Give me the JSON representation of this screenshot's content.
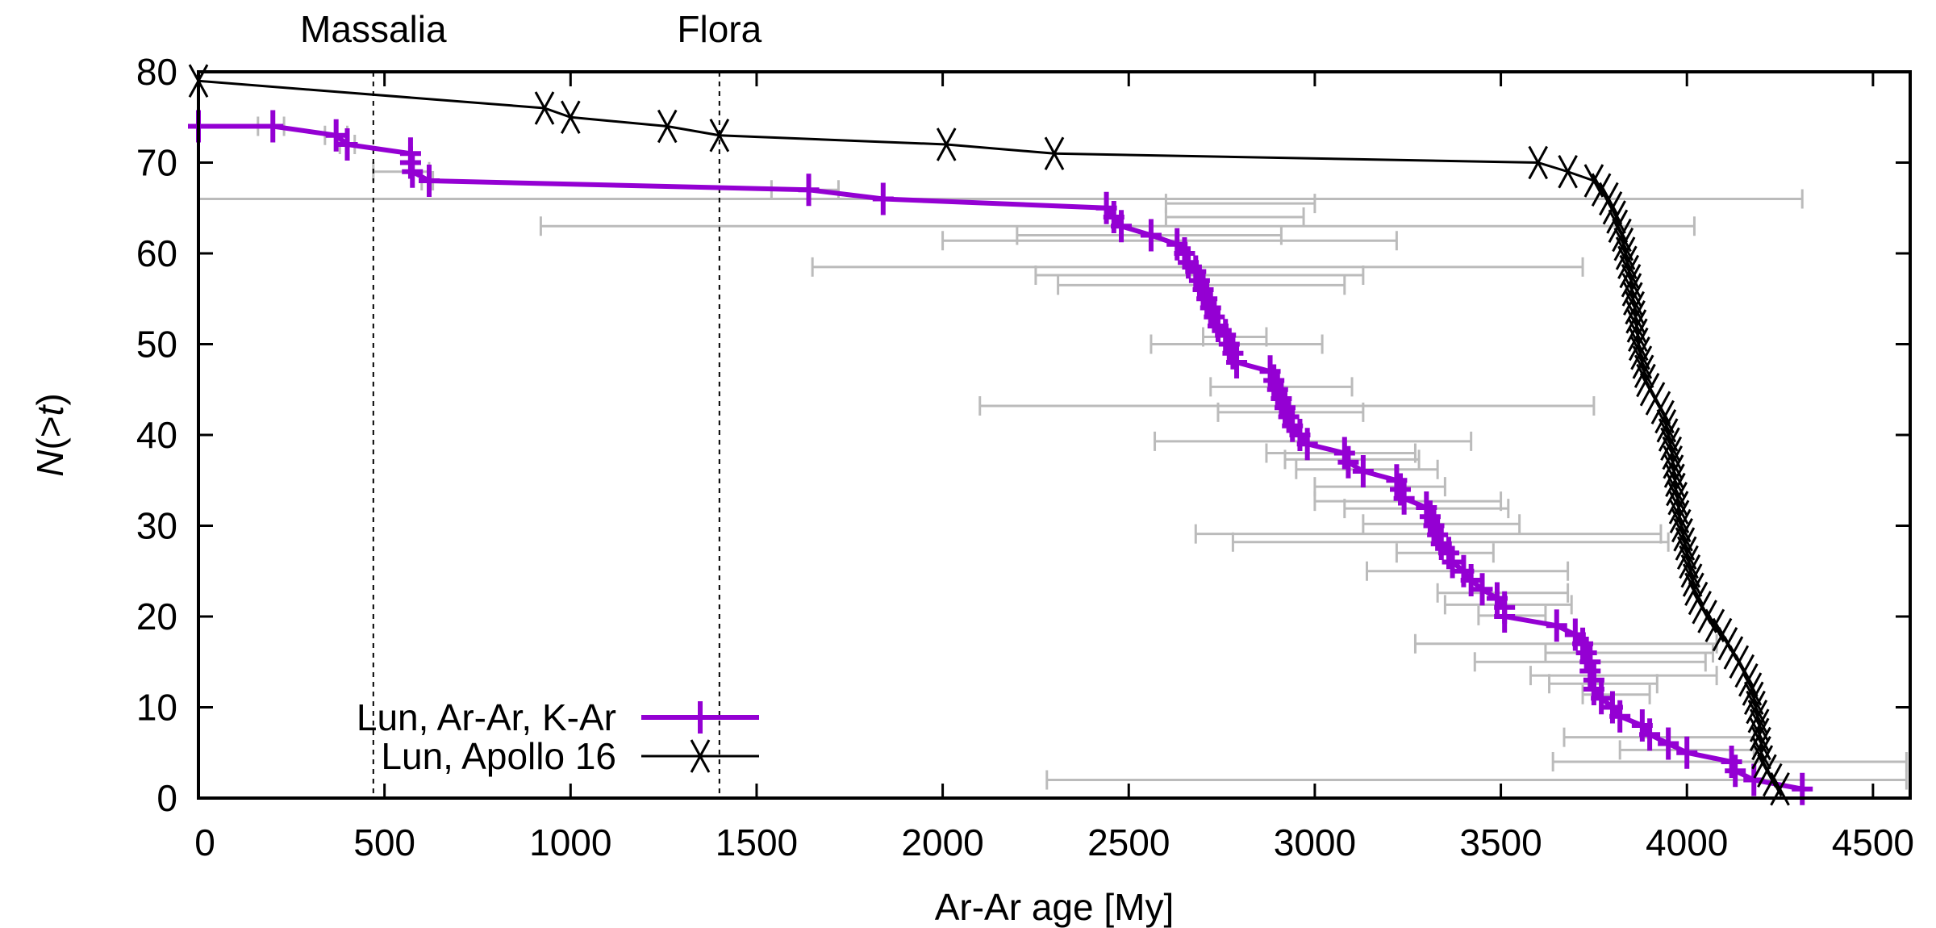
{
  "chart_data": {
    "type": "line",
    "xlabel": "Ar-Ar age [My]",
    "ylabel": "N(>t)",
    "xlim": [
      0,
      4600
    ],
    "ylim": [
      0,
      80
    ],
    "xticks": [
      0,
      500,
      1000,
      1500,
      2000,
      2500,
      3000,
      3500,
      4000,
      4500
    ],
    "yticks": [
      0,
      10,
      20,
      30,
      40,
      50,
      60,
      70,
      80
    ],
    "grid": false,
    "legend_position": "bottom-left",
    "annotations": [
      {
        "label": "Massalia",
        "x": 470
      },
      {
        "label": "Flora",
        "x": 1400
      }
    ],
    "colors": {
      "lun_arar": "#9400d3",
      "apollo16": "#000000",
      "errorbars": "#bbbbbb"
    },
    "series": [
      {
        "name": "Lun, Ar-Ar, K-Ar",
        "marker": "plus",
        "points": [
          [
            0,
            74
          ],
          [
            200,
            74
          ],
          [
            370,
            73
          ],
          [
            400,
            72
          ],
          [
            570,
            71
          ],
          [
            570,
            70
          ],
          [
            575,
            69
          ],
          [
            620,
            68
          ],
          [
            1640,
            67
          ],
          [
            1840,
            66
          ],
          [
            2440,
            65
          ],
          [
            2460,
            64
          ],
          [
            2480,
            63
          ],
          [
            2560,
            62
          ],
          [
            2630,
            61
          ],
          [
            2650,
            60
          ],
          [
            2660,
            59
          ],
          [
            2680,
            58
          ],
          [
            2690,
            57
          ],
          [
            2700,
            56
          ],
          [
            2710,
            55
          ],
          [
            2720,
            54
          ],
          [
            2730,
            53
          ],
          [
            2740,
            52
          ],
          [
            2760,
            51
          ],
          [
            2770,
            50
          ],
          [
            2780,
            49
          ],
          [
            2790,
            48
          ],
          [
            2880,
            47
          ],
          [
            2890,
            46
          ],
          [
            2900,
            45
          ],
          [
            2910,
            44
          ],
          [
            2920,
            43
          ],
          [
            2930,
            42
          ],
          [
            2940,
            41
          ],
          [
            2960,
            40
          ],
          [
            2980,
            39
          ],
          [
            3080,
            38
          ],
          [
            3090,
            37
          ],
          [
            3130,
            36
          ],
          [
            3220,
            35
          ],
          [
            3230,
            34
          ],
          [
            3240,
            33
          ],
          [
            3300,
            32
          ],
          [
            3310,
            31
          ],
          [
            3320,
            30
          ],
          [
            3330,
            29
          ],
          [
            3340,
            28
          ],
          [
            3360,
            27
          ],
          [
            3370,
            26
          ],
          [
            3400,
            25
          ],
          [
            3420,
            24
          ],
          [
            3450,
            23
          ],
          [
            3490,
            22
          ],
          [
            3510,
            21
          ],
          [
            3510,
            20
          ],
          [
            3650,
            19
          ],
          [
            3700,
            18
          ],
          [
            3720,
            17
          ],
          [
            3730,
            16
          ],
          [
            3740,
            15
          ],
          [
            3740,
            14
          ],
          [
            3750,
            13
          ],
          [
            3750,
            12
          ],
          [
            3770,
            11
          ],
          [
            3800,
            10
          ],
          [
            3820,
            9
          ],
          [
            3880,
            8
          ],
          [
            3900,
            7
          ],
          [
            3950,
            6
          ],
          [
            4000,
            5
          ],
          [
            4120,
            4
          ],
          [
            4130,
            3
          ],
          [
            4180,
            2
          ],
          [
            4310,
            1
          ]
        ],
        "xerrorbars": [
          [
            74,
            160,
            230
          ],
          [
            73,
            340,
            400
          ],
          [
            72,
            380,
            420
          ],
          [
            69,
            470,
            620
          ],
          [
            68,
            600,
            630
          ],
          [
            67,
            1540,
            1720
          ],
          [
            66,
            0,
            4310
          ],
          [
            65.5,
            2600,
            3000
          ],
          [
            64,
            2600,
            2970
          ],
          [
            63,
            920,
            4020
          ],
          [
            62,
            2200,
            2910
          ],
          [
            61.4,
            2000,
            3220
          ],
          [
            58.5,
            1650,
            3720
          ],
          [
            57.6,
            2250,
            3130
          ],
          [
            56.5,
            2310,
            3080
          ],
          [
            50.8,
            2700,
            2870
          ],
          [
            50,
            2560,
            3020
          ],
          [
            45.3,
            2720,
            3100
          ],
          [
            43.2,
            2100,
            3750
          ],
          [
            42.5,
            2740,
            3130
          ],
          [
            39.3,
            2570,
            3420
          ],
          [
            38,
            2870,
            3270
          ],
          [
            37.3,
            2920,
            3280
          ],
          [
            36.2,
            2950,
            3330
          ],
          [
            34.3,
            3000,
            3350
          ],
          [
            32.7,
            3000,
            3500
          ],
          [
            31.9,
            3080,
            3520
          ],
          [
            30.2,
            3130,
            3550
          ],
          [
            29.1,
            2680,
            3930
          ],
          [
            28.2,
            2780,
            3950
          ],
          [
            27,
            3220,
            3480
          ],
          [
            25,
            3140,
            3680
          ],
          [
            22.6,
            3330,
            3680
          ],
          [
            21.3,
            3350,
            3690
          ],
          [
            20.1,
            3440,
            3620
          ],
          [
            17,
            3270,
            4080
          ],
          [
            16,
            3620,
            4070
          ],
          [
            15,
            3430,
            4050
          ],
          [
            13.5,
            3580,
            4080
          ],
          [
            12.6,
            3630,
            3920
          ],
          [
            11.4,
            3720,
            3900
          ],
          [
            6.7,
            3670,
            4180
          ],
          [
            5.3,
            3820,
            4180
          ],
          [
            4,
            3640,
            4590
          ],
          [
            2,
            2280,
            4590
          ]
        ]
      },
      {
        "name": "Lun, Apollo 16",
        "marker": "cross",
        "points": [
          [
            0,
            79
          ],
          [
            930,
            76
          ],
          [
            1000,
            75
          ],
          [
            1260,
            74
          ],
          [
            1400,
            73
          ],
          [
            2010,
            72
          ],
          [
            2300,
            71
          ],
          [
            3600,
            70
          ],
          [
            3680,
            69
          ],
          [
            3750,
            68
          ],
          [
            3770,
            67
          ],
          [
            3790,
            66
          ],
          [
            3800,
            65
          ],
          [
            3810,
            64
          ],
          [
            3815,
            63
          ],
          [
            3825,
            62
          ],
          [
            3830,
            61
          ],
          [
            3835,
            60
          ],
          [
            3840,
            59
          ],
          [
            3845,
            58
          ],
          [
            3850,
            57
          ],
          [
            3852,
            56
          ],
          [
            3855,
            55
          ],
          [
            3860,
            54
          ],
          [
            3862,
            53
          ],
          [
            3865,
            52
          ],
          [
            3868,
            51
          ],
          [
            3870,
            50
          ],
          [
            3875,
            49
          ],
          [
            3880,
            48
          ],
          [
            3885,
            47
          ],
          [
            3890,
            46
          ],
          [
            3900,
            45
          ],
          [
            3915,
            44
          ],
          [
            3930,
            43
          ],
          [
            3940,
            42
          ],
          [
            3945,
            41
          ],
          [
            3950,
            40
          ],
          [
            3955,
            39
          ],
          [
            3960,
            38
          ],
          [
            3962,
            37
          ],
          [
            3965,
            36
          ],
          [
            3968,
            35
          ],
          [
            3970,
            34
          ],
          [
            3975,
            33
          ],
          [
            3978,
            32
          ],
          [
            3980,
            31
          ],
          [
            3985,
            30
          ],
          [
            3990,
            29
          ],
          [
            3995,
            28
          ],
          [
            4000,
            27
          ],
          [
            4005,
            26
          ],
          [
            4010,
            25
          ],
          [
            4015,
            24
          ],
          [
            4020,
            23
          ],
          [
            4030,
            22
          ],
          [
            4040,
            21
          ],
          [
            4055,
            20
          ],
          [
            4075,
            19
          ],
          [
            4095,
            18
          ],
          [
            4110,
            17
          ],
          [
            4125,
            16
          ],
          [
            4140,
            15
          ],
          [
            4155,
            14
          ],
          [
            4165,
            13
          ],
          [
            4175,
            12
          ],
          [
            4180,
            11
          ],
          [
            4185,
            10
          ],
          [
            4190,
            9
          ],
          [
            4195,
            8
          ],
          [
            4195,
            7
          ],
          [
            4200,
            6
          ],
          [
            4200,
            5
          ],
          [
            4205,
            4
          ],
          [
            4215,
            3
          ],
          [
            4230,
            2
          ],
          [
            4250,
            1
          ]
        ]
      }
    ]
  }
}
